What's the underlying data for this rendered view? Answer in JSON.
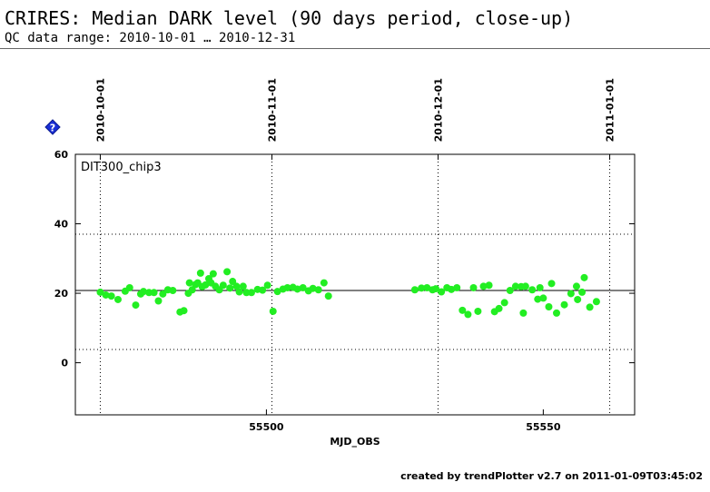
{
  "header": {
    "title": "CRIRES: Median DARK level (90 days period, close-up)",
    "subtitle": "QC data range: 2010-10-01 … 2010-12-31"
  },
  "footer": {
    "text": "created by trendPlotter v2.7 on 2011-01-09T03:45:02"
  },
  "icons": {
    "help": "help-diamond-icon"
  },
  "colors": {
    "points": "#22ee22",
    "help_icon": "#1a2fd6",
    "axes": "#000000"
  },
  "chart_data": {
    "type": "scatter",
    "panel_label": "DIT300_chip3",
    "xlabel": "MJD_OBS",
    "ylabel": "",
    "xlim": [
      55465.5,
      55566.5
    ],
    "ylim": [
      -15,
      60
    ],
    "x_ticks": [
      55500,
      55550
    ],
    "y_ticks": [
      0,
      20,
      40,
      60
    ],
    "date_ticks": [
      {
        "label": "2010-10-01",
        "mjd": 55470
      },
      {
        "label": "2010-11-01",
        "mjd": 55501
      },
      {
        "label": "2010-12-01",
        "mjd": 55531
      },
      {
        "label": "2011-01-01",
        "mjd": 55562
      }
    ],
    "reference_line": 20.8,
    "limit_lines": [
      3.8,
      37.0
    ],
    "grid": false,
    "points": [
      [
        55470.0,
        20.3
      ],
      [
        55471.0,
        19.5
      ],
      [
        55472.0,
        19.2
      ],
      [
        55473.2,
        18.2
      ],
      [
        55474.5,
        20.6
      ],
      [
        55475.3,
        21.6
      ],
      [
        55476.4,
        16.6
      ],
      [
        55477.3,
        19.8
      ],
      [
        55477.8,
        20.5
      ],
      [
        55478.8,
        20.2
      ],
      [
        55479.7,
        20.2
      ],
      [
        55480.5,
        17.8
      ],
      [
        55481.3,
        19.8
      ],
      [
        55482.2,
        21.0
      ],
      [
        55483.1,
        20.8
      ],
      [
        55484.4,
        14.6
      ],
      [
        55485.1,
        15.0
      ],
      [
        55485.9,
        20.0
      ],
      [
        55486.1,
        23.0
      ],
      [
        55486.6,
        21.0
      ],
      [
        55487.2,
        22.5
      ],
      [
        55487.6,
        23.0
      ],
      [
        55488.1,
        25.8
      ],
      [
        55488.4,
        21.9
      ],
      [
        55489.0,
        22.4
      ],
      [
        55489.6,
        24.2
      ],
      [
        55490.0,
        23.0
      ],
      [
        55490.4,
        25.6
      ],
      [
        55490.8,
        22.0
      ],
      [
        55491.5,
        21.0
      ],
      [
        55492.2,
        22.3
      ],
      [
        55492.9,
        26.2
      ],
      [
        55493.4,
        21.5
      ],
      [
        55493.9,
        23.4
      ],
      [
        55494.6,
        22.0
      ],
      [
        55495.1,
        20.4
      ],
      [
        55495.8,
        22.0
      ],
      [
        55496.4,
        20.2
      ],
      [
        55497.3,
        20.2
      ],
      [
        55498.4,
        21.1
      ],
      [
        55499.3,
        20.9
      ],
      [
        55500.2,
        22.3
      ],
      [
        55501.2,
        14.8
      ],
      [
        55502.0,
        20.5
      ],
      [
        55503.0,
        21.2
      ],
      [
        55503.8,
        21.6
      ],
      [
        55504.8,
        21.7
      ],
      [
        55505.6,
        21.2
      ],
      [
        55506.6,
        21.6
      ],
      [
        55507.6,
        20.7
      ],
      [
        55508.4,
        21.4
      ],
      [
        55509.4,
        21.0
      ],
      [
        55510.4,
        23.0
      ],
      [
        55511.2,
        19.2
      ],
      [
        55526.8,
        21.0
      ],
      [
        55528.0,
        21.5
      ],
      [
        55529.0,
        21.6
      ],
      [
        55530.0,
        21.0
      ],
      [
        55530.6,
        21.3
      ],
      [
        55531.6,
        20.4
      ],
      [
        55532.6,
        21.6
      ],
      [
        55533.4,
        21.1
      ],
      [
        55534.4,
        21.6
      ],
      [
        55535.4,
        15.1
      ],
      [
        55536.4,
        13.9
      ],
      [
        55537.4,
        21.6
      ],
      [
        55538.2,
        14.8
      ],
      [
        55539.2,
        22.0
      ],
      [
        55540.2,
        22.3
      ],
      [
        55541.2,
        14.7
      ],
      [
        55542.0,
        15.6
      ],
      [
        55543.0,
        17.3
      ],
      [
        55544.0,
        20.8
      ],
      [
        55545.0,
        22.0
      ],
      [
        55546.0,
        21.9
      ],
      [
        55546.4,
        14.3
      ],
      [
        55546.8,
        22.0
      ],
      [
        55548.0,
        21.0
      ],
      [
        55549.0,
        18.3
      ],
      [
        55549.4,
        21.6
      ],
      [
        55550.0,
        18.6
      ],
      [
        55551.0,
        16.1
      ],
      [
        55551.5,
        22.8
      ],
      [
        55552.4,
        14.3
      ],
      [
        55553.8,
        16.7
      ],
      [
        55555.0,
        19.9
      ],
      [
        55556.0,
        22.0
      ],
      [
        55556.2,
        18.2
      ],
      [
        55557.0,
        20.3
      ],
      [
        55557.4,
        24.5
      ],
      [
        55558.4,
        16.0
      ],
      [
        55559.6,
        17.6
      ]
    ]
  }
}
